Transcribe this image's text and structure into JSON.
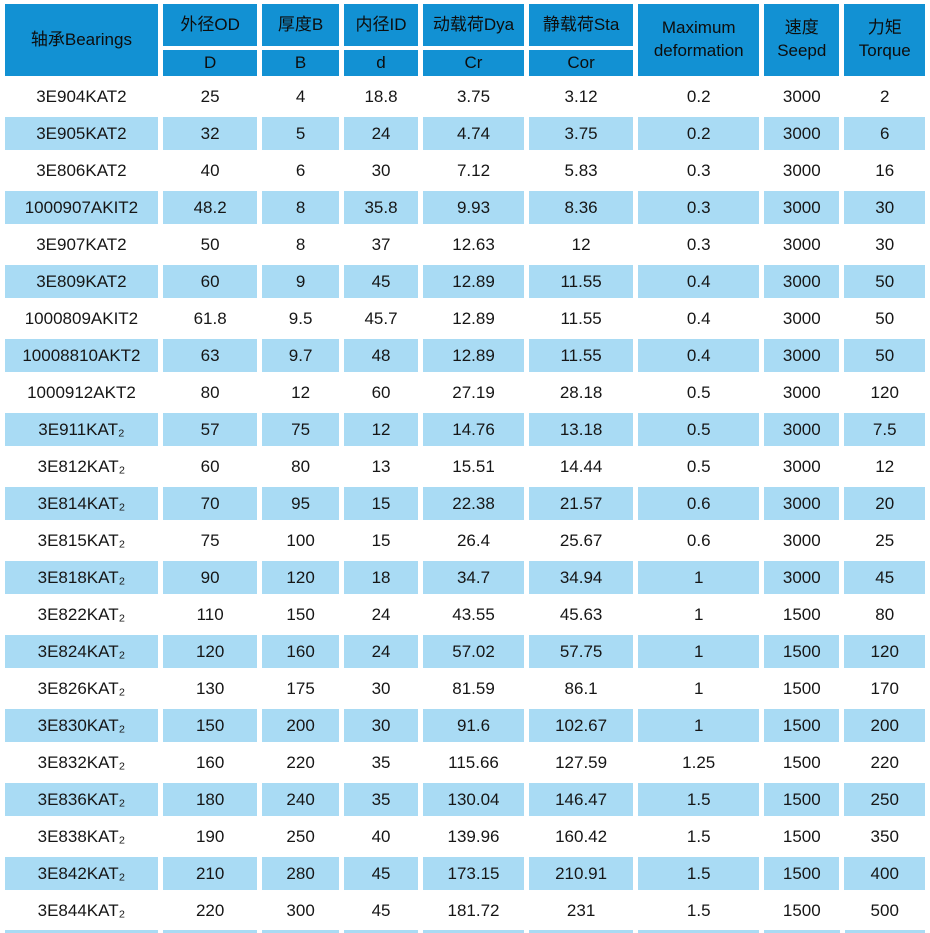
{
  "colors": {
    "header_bg": "#1291d3",
    "alt_row_bg": "#a9dbf4",
    "row_bg": "#ffffff",
    "gap": "#ffffff",
    "text": "#161616"
  },
  "chart_data": {
    "type": "table",
    "header": {
      "bearing": "轴承Bearings",
      "od_top": "外径OD",
      "od_sub": "D",
      "thickness_top": "厚度B",
      "thickness_sub": "B",
      "id_top": "内径ID",
      "id_sub": "d",
      "dynamic_top": "动载荷Dya",
      "dynamic_sub": "Cr",
      "static_top": "静载荷Sta",
      "static_sub": "Cor",
      "maxdef_line1": "Maximum",
      "maxdef_line2": "deformation",
      "speed_line1": "速度",
      "speed_line2": "Seepd",
      "torque_line1": "力矩",
      "torque_line2": "Torque"
    },
    "column_keys": [
      "bearing",
      "od",
      "thickness",
      "id",
      "dynamic-load",
      "static-load",
      "max-deformation",
      "speed",
      "torque"
    ],
    "rows": [
      [
        "3E904KAT2",
        "25",
        "4",
        "18.8",
        "3.75",
        "3.12",
        "0.2",
        "3000",
        "2"
      ],
      [
        "3E905KAT2",
        "32",
        "5",
        "24",
        "4.74",
        "3.75",
        "0.2",
        "3000",
        "6"
      ],
      [
        "3E806KAT2",
        "40",
        "6",
        "30",
        "7.12",
        "5.83",
        "0.3",
        "3000",
        "16"
      ],
      [
        "1000907AKIT2",
        "48.2",
        "8",
        "35.8",
        "9.93",
        "8.36",
        "0.3",
        "3000",
        "30"
      ],
      [
        "3E907KAT2",
        "50",
        "8",
        "37",
        "12.63",
        "12",
        "0.3",
        "3000",
        "30"
      ],
      [
        "3E809KAT2",
        "60",
        "9",
        "45",
        "12.89",
        "11.55",
        "0.4",
        "3000",
        "50"
      ],
      [
        "1000809AKIT2",
        "61.8",
        "9.5",
        "45.7",
        "12.89",
        "11.55",
        "0.4",
        "3000",
        "50"
      ],
      [
        "10008810AKT2",
        "63",
        "9.7",
        "48",
        "12.89",
        "11.55",
        "0.4",
        "3000",
        "50"
      ],
      [
        "1000912AKT2",
        "80",
        "12",
        "60",
        "27.19",
        "28.18",
        "0.5",
        "3000",
        "120"
      ],
      [
        "3E911KAT₂",
        "57",
        "75",
        "12",
        "14.76",
        "13.18",
        "0.5",
        "3000",
        "7.5"
      ],
      [
        "3E812KAT₂",
        "60",
        "80",
        "13",
        "15.51",
        "14.44",
        "0.5",
        "3000",
        "12"
      ],
      [
        "3E814KAT₂",
        "70",
        "95",
        "15",
        "22.38",
        "21.57",
        "0.6",
        "3000",
        "20"
      ],
      [
        "3E815KAT₂",
        "75",
        "100",
        "15",
        "26.4",
        "25.67",
        "0.6",
        "3000",
        "25"
      ],
      [
        "3E818KAT₂",
        "90",
        "120",
        "18",
        "34.7",
        "34.94",
        "1",
        "3000",
        "45"
      ],
      [
        "3E822KAT₂",
        "110",
        "150",
        "24",
        "43.55",
        "45.63",
        "1",
        "1500",
        "80"
      ],
      [
        "3E824KAT₂",
        "120",
        "160",
        "24",
        "57.02",
        "57.75",
        "1",
        "1500",
        "120"
      ],
      [
        "3E826KAT₂",
        "130",
        "175",
        "30",
        "81.59",
        "86.1",
        "1",
        "1500",
        "170"
      ],
      [
        "3E830KAT₂",
        "150",
        "200",
        "30",
        "91.6",
        "102.67",
        "1",
        "1500",
        "200"
      ],
      [
        "3E832KAT₂",
        "160",
        "220",
        "35",
        "115.66",
        "127.59",
        "1.25",
        "1500",
        "220"
      ],
      [
        "3E836KAT₂",
        "180",
        "240",
        "35",
        "130.04",
        "146.47",
        "1.5",
        "1500",
        "250"
      ],
      [
        "3E838KAT₂",
        "190",
        "250",
        "40",
        "139.96",
        "160.42",
        "1.5",
        "1500",
        "350"
      ],
      [
        "3E842KAT₂",
        "210",
        "280",
        "45",
        "173.15",
        "210.91",
        "1.5",
        "1500",
        "400"
      ],
      [
        "3E844KAT₂",
        "220",
        "300",
        "45",
        "181.72",
        "231",
        "1.5",
        "1500",
        "500"
      ]
    ]
  }
}
